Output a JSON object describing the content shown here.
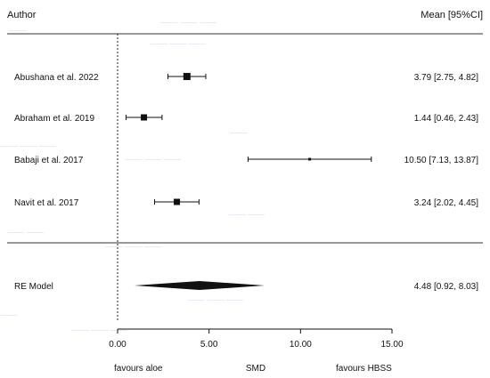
{
  "chart_data": {
    "type": "forest",
    "header_left": "Author",
    "header_right": "Mean [95%CI]",
    "studies": [
      {
        "label": "Abushana et al. 2022",
        "mean": 3.79,
        "lower": 2.75,
        "upper": 4.82,
        "ci_text": "3.79 [2.75,  4.82]"
      },
      {
        "label": "Abraham et al. 2019",
        "mean": 1.44,
        "lower": 0.46,
        "upper": 2.43,
        "ci_text": "1.44 [0.46,  2.43]"
      },
      {
        "label": "Babaji et al. 2017",
        "mean": 10.5,
        "lower": 7.13,
        "upper": 13.87,
        "ci_text": "10.50 [7.13, 13.87]"
      },
      {
        "label": "Navit et al. 2017",
        "mean": 3.24,
        "lower": 2.02,
        "upper": 4.45,
        "ci_text": "3.24 [2.02,  4.45]"
      }
    ],
    "summary": {
      "label": "RE Model",
      "mean": 4.48,
      "lower": 0.92,
      "upper": 8.03,
      "ci_text": "4.48 [0.92,  8.03]"
    },
    "xlim": [
      0,
      15
    ],
    "xticks": [
      0,
      5,
      10,
      15
    ],
    "xtick_labels": [
      "0.00",
      "5.00",
      "10.00",
      "15.00"
    ],
    "xlabel": "SMD",
    "left_note": "favours aloe",
    "right_note": "favours HBSS",
    "reference_line": 0
  }
}
